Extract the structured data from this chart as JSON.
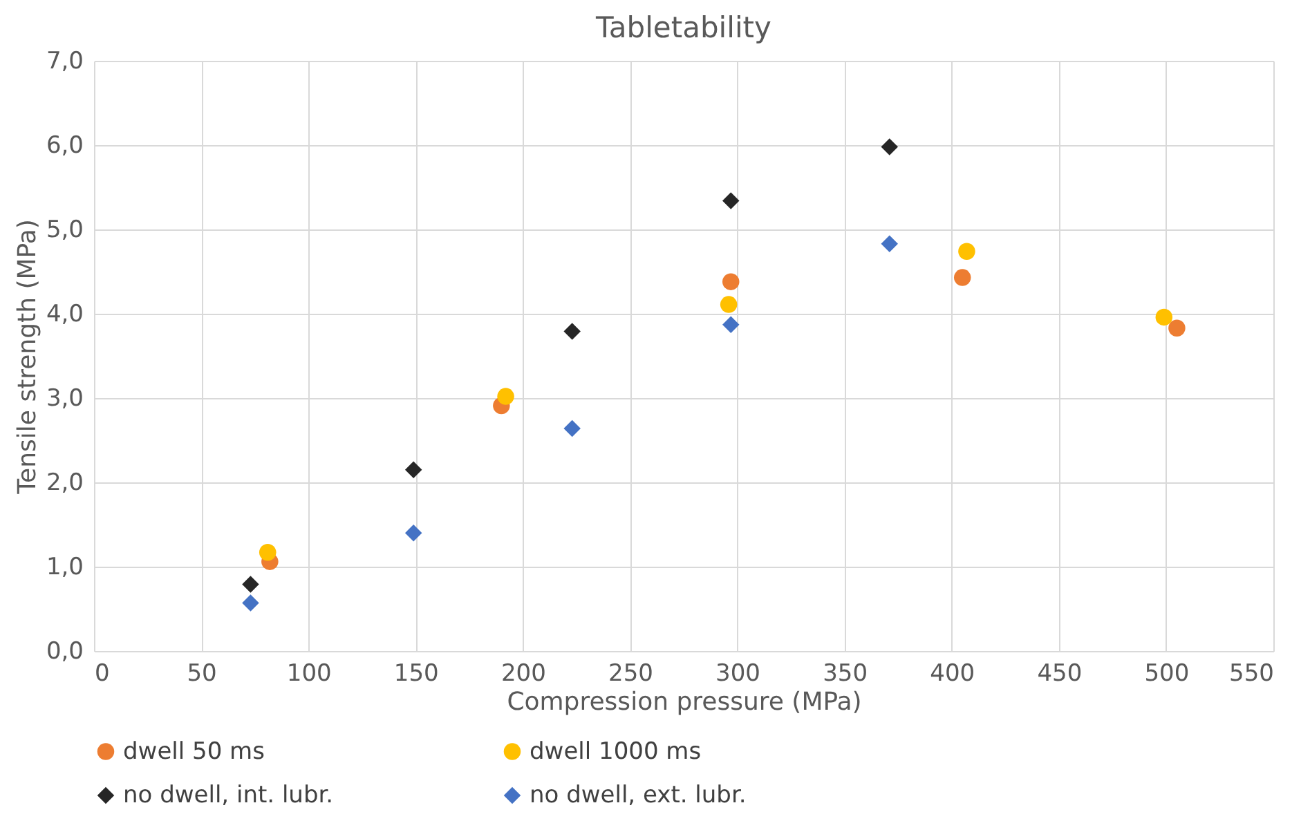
{
  "chart_data": {
    "type": "scatter",
    "title": "Tabletability",
    "xlabel": "Compression pressure (MPa)",
    "ylabel": "Tensile strength (MPa)",
    "xlim": [
      0,
      550
    ],
    "xticks": [
      0,
      50,
      100,
      150,
      200,
      250,
      300,
      350,
      400,
      450,
      500,
      550
    ],
    "ylim": [
      0,
      7
    ],
    "yticks": [
      {
        "value": 0,
        "label": "0,0"
      },
      {
        "value": 1,
        "label": "1,0"
      },
      {
        "value": 2,
        "label": "2,0"
      },
      {
        "value": 3,
        "label": "3,0"
      },
      {
        "value": 4,
        "label": "4,0"
      },
      {
        "value": 5,
        "label": "5,0"
      },
      {
        "value": 6,
        "label": "6,0"
      },
      {
        "value": 7,
        "label": "7,0"
      }
    ],
    "grid": true,
    "legend": "bottom",
    "series": [
      {
        "name": "dwell 50 ms",
        "color": "#ed7d31",
        "marker": "circle",
        "x": [
          82,
          190,
          297,
          405,
          505
        ],
        "values": [
          1.06,
          2.91,
          4.38,
          4.43,
          3.83
        ]
      },
      {
        "name": "dwell 1000 ms",
        "color": "#ffc000",
        "marker": "circle",
        "x": [
          81,
          192,
          296,
          407,
          499
        ],
        "values": [
          1.17,
          3.02,
          4.11,
          4.74,
          3.96
        ]
      },
      {
        "name": "no dwell, int. lubr.",
        "color": "#262626",
        "marker": "diamond",
        "x": [
          73,
          149,
          223,
          297,
          371
        ],
        "values": [
          0.79,
          2.15,
          3.79,
          5.34,
          5.98
        ]
      },
      {
        "name": "no dwell, ext. lubr.",
        "color": "#4472c4",
        "marker": "diamond",
        "x": [
          73,
          149,
          223,
          297,
          371
        ],
        "values": [
          0.57,
          1.4,
          2.64,
          3.87,
          4.83
        ]
      }
    ]
  }
}
